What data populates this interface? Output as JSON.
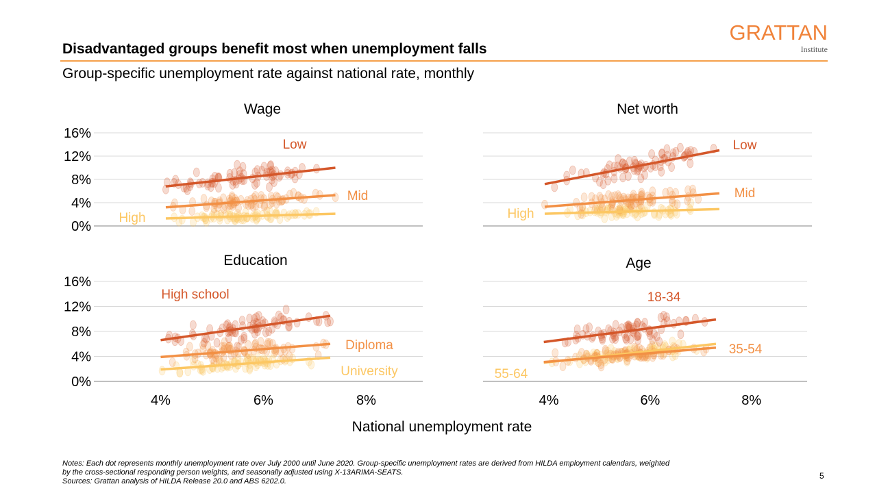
{
  "header": {
    "title": "Disadvantaged groups benefit most when unemployment falls",
    "subtitle": "Group-specific unemployment rate against national rate, monthly"
  },
  "logo": {
    "name": "GRATTAN",
    "sub": "Institute",
    "color": "#f0833a"
  },
  "footer": {
    "notes_line1": "Notes: Each dot represents monthly unemployment rate over July 2000 until June 2020. Group-specific unemployment rates are derived from HILDA employment calendars, weighted",
    "notes_line2": "by the cross-sectional responding person weights, and seasonally adjusted using X-13ARIMA-SEATS.",
    "sources": "Sources: Grattan analysis of HILDA Release 20.0 and ABS 6202.0.",
    "page_number": "5"
  },
  "chart_data": {
    "type": "scatter",
    "xlabel": "National unemployment rate",
    "x_ticks": [
      "4%",
      "6%",
      "8%"
    ],
    "x_tick_values": [
      4,
      6,
      8
    ],
    "y_ticks": [
      "0%",
      "4%",
      "8%",
      "12%",
      "16%"
    ],
    "y_tick_values": [
      0,
      4,
      8,
      12,
      16
    ],
    "xlim": [
      2.7,
      9.1
    ],
    "ylim": [
      0,
      16
    ],
    "grid": true,
    "colors": {
      "dark": "#d4572a",
      "mid": "#f29045",
      "light": "#fcc763"
    },
    "panels": [
      {
        "title": "Wage",
        "series": [
          {
            "name": "Low",
            "color": "#d4572a",
            "trend": [
              [
                4.1,
                6.8
              ],
              [
                7.4,
                10.0
              ]
            ],
            "cloud": {
              "x": [
                4.1,
                7.4
              ],
              "y_spread": 1.6
            }
          },
          {
            "name": "Mid",
            "color": "#f29045",
            "trend": [
              [
                4.1,
                3.2
              ],
              [
                7.4,
                5.3
              ]
            ],
            "cloud": {
              "x": [
                4.1,
                7.4
              ],
              "y_spread": 1.0
            }
          },
          {
            "name": "High",
            "color": "#fcc763",
            "trend": [
              [
                4.1,
                1.3
              ],
              [
                7.4,
                2.1
              ]
            ],
            "cloud": {
              "x": [
                4.1,
                7.4
              ],
              "y_spread": 0.7
            }
          }
        ]
      },
      {
        "title": "Net worth",
        "series": [
          {
            "name": "Low",
            "color": "#d4572a",
            "trend": [
              [
                3.9,
                7.2
              ],
              [
                7.3,
                13.0
              ]
            ],
            "cloud": {
              "x": [
                3.9,
                7.6
              ],
              "y_spread": 1.8
            }
          },
          {
            "name": "Mid",
            "color": "#f29045",
            "trend": [
              [
                3.9,
                3.3
              ],
              [
                7.3,
                5.6
              ]
            ],
            "cloud": {
              "x": [
                3.9,
                7.6
              ],
              "y_spread": 1.2
            }
          },
          {
            "name": "High",
            "color": "#fcc763",
            "trend": [
              [
                3.9,
                2.1
              ],
              [
                7.3,
                2.9
              ]
            ],
            "cloud": {
              "x": [
                3.9,
                7.6
              ],
              "y_spread": 0.8
            }
          }
        ]
      },
      {
        "title": "Education",
        "series": [
          {
            "name": "High school",
            "color": "#d4572a",
            "trend": [
              [
                4.0,
                6.6
              ],
              [
                7.3,
                10.5
              ]
            ],
            "cloud": {
              "x": [
                4.0,
                7.3
              ],
              "y_spread": 1.7
            }
          },
          {
            "name": "Diploma",
            "color": "#f29045",
            "trend": [
              [
                4.0,
                3.9
              ],
              [
                7.3,
                6.0
              ]
            ],
            "cloud": {
              "x": [
                4.0,
                7.3
              ],
              "y_spread": 1.3
            }
          },
          {
            "name": "University",
            "color": "#fcc763",
            "trend": [
              [
                4.0,
                1.9
              ],
              [
                7.3,
                3.8
              ]
            ],
            "cloud": {
              "x": [
                4.0,
                7.3
              ],
              "y_spread": 0.9
            }
          }
        ]
      },
      {
        "title": "Age",
        "series": [
          {
            "name": "18-34",
            "color": "#d4572a",
            "trend": [
              [
                3.9,
                6.3
              ],
              [
                7.3,
                9.9
              ]
            ],
            "cloud": {
              "x": [
                3.9,
                7.3
              ],
              "y_spread": 1.5
            }
          },
          {
            "name": "35-54",
            "color": "#f29045",
            "trend": [
              [
                3.9,
                3.1
              ],
              [
                7.3,
                5.4
              ]
            ],
            "cloud": {
              "x": [
                3.9,
                7.3
              ],
              "y_spread": 1.0
            }
          },
          {
            "name": "55-64",
            "color": "#fcc763",
            "trend": [
              [
                3.9,
                3.0
              ],
              [
                7.3,
                6.0
              ]
            ],
            "cloud": {
              "x": [
                3.9,
                7.3
              ],
              "y_spread": 0.9
            }
          }
        ]
      }
    ]
  }
}
